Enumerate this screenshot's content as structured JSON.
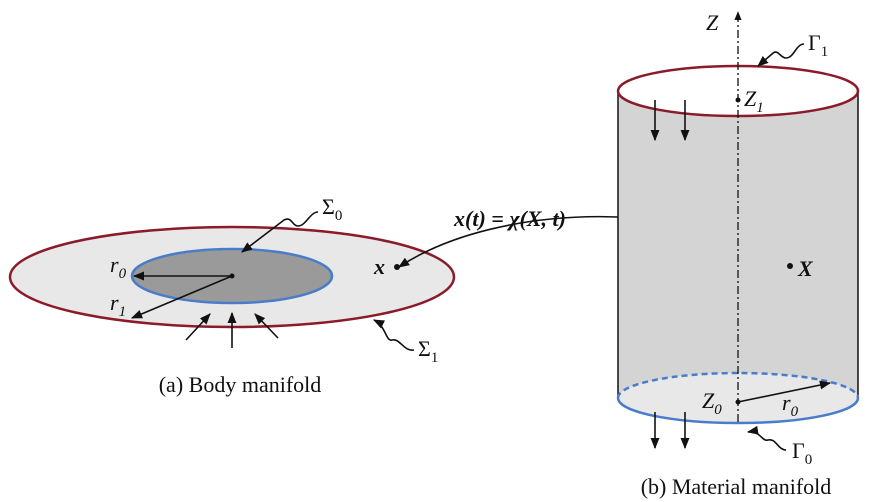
{
  "body": {
    "caption": "(a) Body manifold",
    "sigma0": {
      "text": "Σ",
      "sub": "0"
    },
    "sigma1": {
      "text": "Σ",
      "sub": "1"
    },
    "r0": {
      "text": "r",
      "sub": "0"
    },
    "r1": {
      "text": "r",
      "sub": "1"
    },
    "x": "x"
  },
  "material": {
    "caption": "(b) Material manifold",
    "Z": "Z",
    "gamma1": {
      "text": "Γ",
      "sub": "1"
    },
    "gamma0": {
      "text": "Γ",
      "sub": "0"
    },
    "Z1": {
      "text": "Z",
      "sub": "1"
    },
    "Z0": {
      "text": "Z",
      "sub": "0"
    },
    "r0": {
      "text": "r",
      "sub": "0"
    },
    "X": "X"
  },
  "mapping": "x(t) = χ(X, t)"
}
